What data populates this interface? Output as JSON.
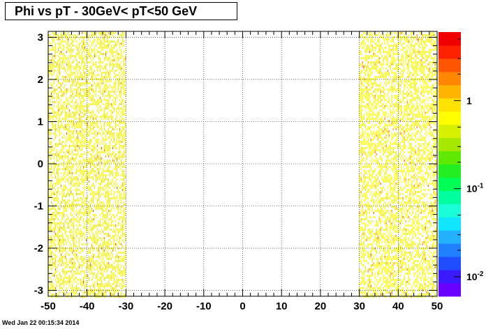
{
  "chart_data": {
    "type": "heatmap",
    "title": "Phi vs pT - 30GeV< pT<50 GeV",
    "xlabel": "",
    "ylabel": "",
    "xlim": [
      -50,
      50
    ],
    "ylim": [
      -3.14,
      3.14
    ],
    "x_ticks": [
      -50,
      -40,
      -30,
      -20,
      -10,
      0,
      10,
      20,
      30,
      40,
      50
    ],
    "y_ticks": [
      -3,
      -2,
      -1,
      0,
      1,
      2,
      3
    ],
    "grid": true,
    "filled_x_ranges": [
      [
        -50,
        -30
      ],
      [
        30,
        50
      ]
    ],
    "z_scale": "log",
    "z_range": [
      0.006,
      6
    ],
    "colorbar_ticks": [
      {
        "value": 1,
        "label": "1"
      },
      {
        "value": 0.1,
        "label": "10",
        "exponent": "-1"
      },
      {
        "value": 0.01,
        "label": "10",
        "exponent": "-2"
      }
    ],
    "palette": [
      "#6a00ff",
      "#3a1bff",
      "#1f4dff",
      "#2080ff",
      "#23b0ff",
      "#11e6ff",
      "#1affd8",
      "#00ff9e",
      "#00ff55",
      "#22ee22",
      "#5fe800",
      "#a6e800",
      "#d6f000",
      "#ffff00",
      "#ffe200",
      "#ffb400",
      "#ff8600",
      "#ff5500",
      "#ff2200",
      "#f00000"
    ]
  },
  "timestamp": "Wed Jan 22 00:15:34 2014"
}
